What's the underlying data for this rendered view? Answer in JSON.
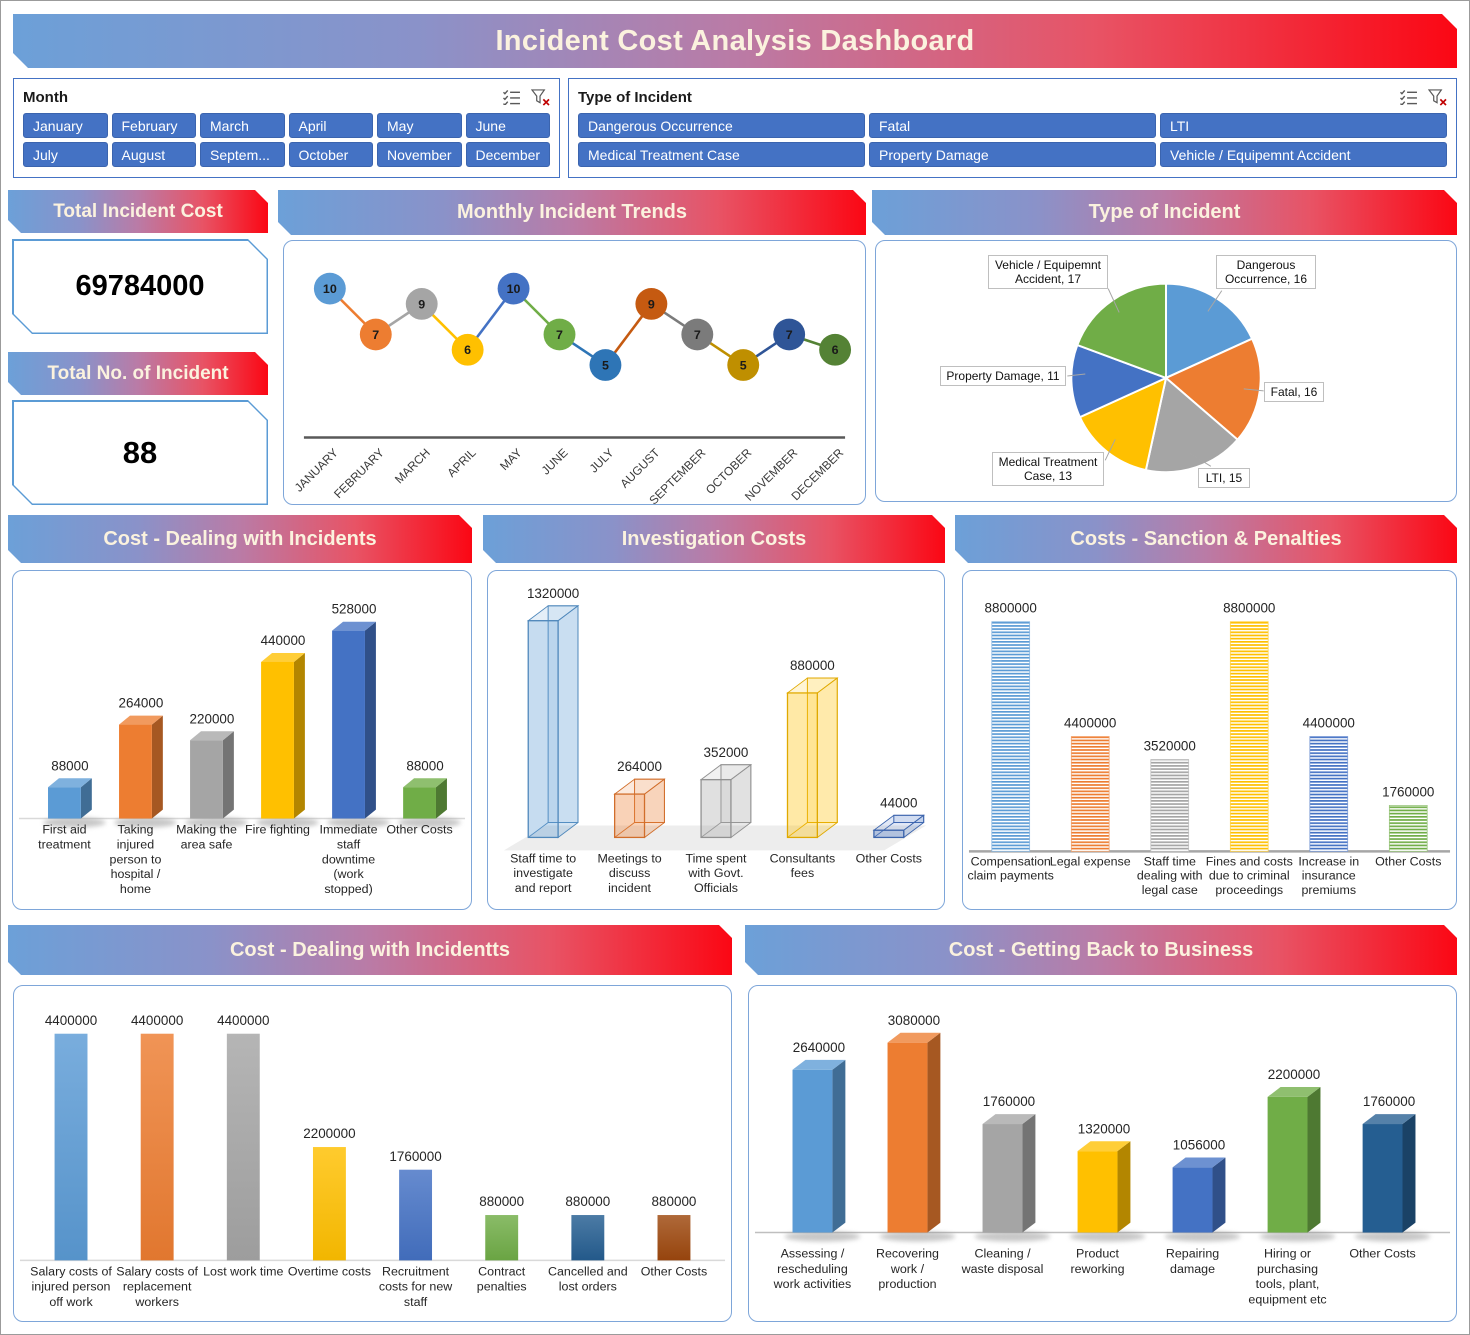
{
  "title": "Incident Cost Analysis Dashboard",
  "slicers": {
    "month": {
      "title": "Month",
      "items": [
        "January",
        "February",
        "March",
        "April",
        "May",
        "June",
        "July",
        "August",
        "Septem...",
        "October",
        "November",
        "December"
      ]
    },
    "incident_type": {
      "title": "Type of Incident",
      "items": [
        "Dangerous Occurrence",
        "Fatal",
        "LTI",
        "Medical Treatment Case",
        "Property Damage",
        "Vehicle / Equipemnt Accident"
      ]
    }
  },
  "kpis": [
    {
      "title": "Total Incident Cost",
      "value": "69784000"
    },
    {
      "title": "Total No. of Incident",
      "value": "88"
    }
  ],
  "sections": {
    "trends": {
      "title": "Monthly Incident Trends"
    },
    "incident_pie": {
      "title": "Type of Incident"
    },
    "dealing": {
      "title": "Cost - Dealing with Incidents"
    },
    "investigation": {
      "title": "Investigation Costs"
    },
    "sanctions": {
      "title": "Costs - Sanction & Penalties"
    },
    "dealing2": {
      "title": "Cost - Dealing with Incidentts"
    },
    "back_to_business": {
      "title": "Cost - Getting Back to Business"
    }
  },
  "chart_data": [
    {
      "id": "monthly_trends",
      "type": "line",
      "title": "Monthly Incident Trends",
      "categories": [
        "JANUARY",
        "FEBRUARY",
        "MARCH",
        "APRIL",
        "MAY",
        "JUNE",
        "JULY",
        "AUGUST",
        "SEPTEMBER",
        "OCTOBER",
        "NOVEMBER",
        "DECEMBER"
      ],
      "values": [
        10,
        7,
        9,
        6,
        10,
        7,
        5,
        9,
        7,
        5,
        7,
        6
      ],
      "point_colors": [
        "#5B9BD5",
        "#ED7D31",
        "#A5A5A5",
        "#FFC000",
        "#4472C4",
        "#70AD47",
        "#2E75B6",
        "#C55A11",
        "#7B7B7B",
        "#BF8F00",
        "#2F5597",
        "#548235"
      ],
      "ylim": [
        0,
        12
      ],
      "grid": false,
      "legend": "none",
      "data_labels": "on-marker"
    },
    {
      "id": "incident_types",
      "type": "pie",
      "title": "Type of Incident",
      "labels": [
        "Dangerous Occurrence",
        "Fatal",
        "LTI",
        "Medical Treatment Case",
        "Property Damage",
        "Vehicle / Equipemnt Accident"
      ],
      "values": [
        16,
        16,
        15,
        13,
        11,
        17
      ],
      "colors": [
        "#5B9BD5",
        "#ED7D31",
        "#A5A5A5",
        "#FFC000",
        "#4472C4",
        "#70AD47"
      ],
      "label_lines": [
        [
          "Dangerous",
          "Occurrence, 16"
        ],
        [
          "Fatal, 16"
        ],
        [
          "LTI, 15"
        ],
        [
          "Medical Treatment",
          "Case, 13"
        ],
        [
          "Property Damage, 11"
        ],
        [
          "Vehicle / Equipemnt",
          "Accident, 17"
        ]
      ],
      "start_angle": 0,
      "direction": "clockwise",
      "legend": "none"
    },
    {
      "id": "cost_dealing",
      "type": "bar",
      "style": "3d",
      "title": "Cost - Dealing with Incidents",
      "categories": [
        [
          "First aid",
          "treatment"
        ],
        [
          "Taking",
          "injured",
          "person to",
          "hospital /",
          "home"
        ],
        [
          "Making the",
          "area safe"
        ],
        [
          "Fire fighting"
        ],
        [
          "Immediate",
          "staff",
          "downtime",
          "(work",
          "stopped)"
        ],
        [
          "Other Costs"
        ]
      ],
      "values": [
        88000,
        264000,
        220000,
        440000,
        528000,
        88000
      ],
      "colors": [
        "#5B9BD5",
        "#ED7D31",
        "#A5A5A5",
        "#FFC000",
        "#4472C4",
        "#70AD47"
      ],
      "ylim": [
        0,
        528000
      ],
      "legend": "none",
      "data_labels": "above"
    },
    {
      "id": "investigation",
      "type": "bar",
      "style": "3d-transparent",
      "title": "Investigation Costs",
      "categories": [
        [
          "Staff time to",
          "investigate",
          "and report"
        ],
        [
          "Meetings to",
          "discuss",
          "incident"
        ],
        [
          "Time spent",
          "with Govt.",
          "Officials"
        ],
        [
          "Consultants",
          "fees"
        ],
        [
          "Other Costs"
        ]
      ],
      "values": [
        1320000,
        264000,
        352000,
        880000,
        44000
      ],
      "colors": [
        "#5B9BD5",
        "#ED7D31",
        "#A5A5A5",
        "#FFC000",
        "#4472C4"
      ],
      "ylim": [
        0,
        1320000
      ],
      "legend": "none",
      "data_labels": "above"
    },
    {
      "id": "sanctions",
      "type": "bar",
      "style": "striped",
      "title": "Costs - Sanction & Penalties",
      "categories": [
        [
          "Compensation",
          "claim payments"
        ],
        [
          "Legal expense"
        ],
        [
          "Staff time",
          "dealing with",
          "legal case"
        ],
        [
          "Fines and costs",
          "due to criminal",
          "proceedings"
        ],
        [
          "Increase in",
          "insurance",
          "premiums"
        ],
        [
          "Other Costs"
        ]
      ],
      "values": [
        8800000,
        4400000,
        3520000,
        8800000,
        4400000,
        1760000
      ],
      "colors": [
        "#5B9BD5",
        "#ED7D31",
        "#A5A5A5",
        "#FFC000",
        "#4472C4",
        "#70AD47"
      ],
      "ylim": [
        0,
        8800000
      ],
      "legend": "none",
      "data_labels": "above"
    },
    {
      "id": "cost_dealing2",
      "type": "bar",
      "style": "flat",
      "title": "Cost - Dealing with Incidentts",
      "categories": [
        [
          "Salary costs of",
          "injured person",
          "off work"
        ],
        [
          "Salary costs of",
          "replacement",
          "workers"
        ],
        [
          "Lost work time"
        ],
        [
          "Overtime costs"
        ],
        [
          "Recruitment",
          "costs for new",
          "staff"
        ],
        [
          "Contract",
          "penalties"
        ],
        [
          "Cancelled and",
          "lost orders"
        ],
        [
          "Other Costs"
        ]
      ],
      "values": [
        4400000,
        4400000,
        4400000,
        2200000,
        1760000,
        880000,
        880000,
        880000
      ],
      "colors": [
        "#5B9BD5",
        "#ED7D31",
        "#A5A5A5",
        "#FFC000",
        "#4472C4",
        "#70AD47",
        "#255E91",
        "#9E480E"
      ],
      "ylim": [
        0,
        4400000
      ],
      "legend": "none",
      "data_labels": "above"
    },
    {
      "id": "back_to_business",
      "type": "bar",
      "style": "3d",
      "title": "Cost - Getting Back to Business",
      "categories": [
        [
          "Assessing /",
          "rescheduling",
          "work activities"
        ],
        [
          "Recovering",
          "work /",
          "production"
        ],
        [
          "Cleaning /",
          "waste disposal"
        ],
        [
          "Product",
          "reworking"
        ],
        [
          "Repairing",
          "damage"
        ],
        [
          "Hiring or",
          "purchasing",
          "tools, plant,",
          "equipment etc"
        ],
        [
          "Other Costs"
        ]
      ],
      "values": [
        2640000,
        3080000,
        1760000,
        1320000,
        1056000,
        2200000,
        1760000
      ],
      "colors": [
        "#5B9BD5",
        "#ED7D31",
        "#A5A5A5",
        "#FFC000",
        "#4472C4",
        "#70AD47",
        "#255E91"
      ],
      "ylim": [
        0,
        3080000
      ],
      "legend": "none",
      "data_labels": "above"
    }
  ],
  "colors": {
    "banner_text": "#FBF2DE",
    "slicer_button": "#4472C4",
    "box_border": "#7EA6D9",
    "axis_line": "#595959",
    "value_label": "#262626"
  },
  "icons": {
    "slicer_multiselect": "multiselect-icon",
    "slicer_clear_filter": "clear-filter-icon"
  }
}
